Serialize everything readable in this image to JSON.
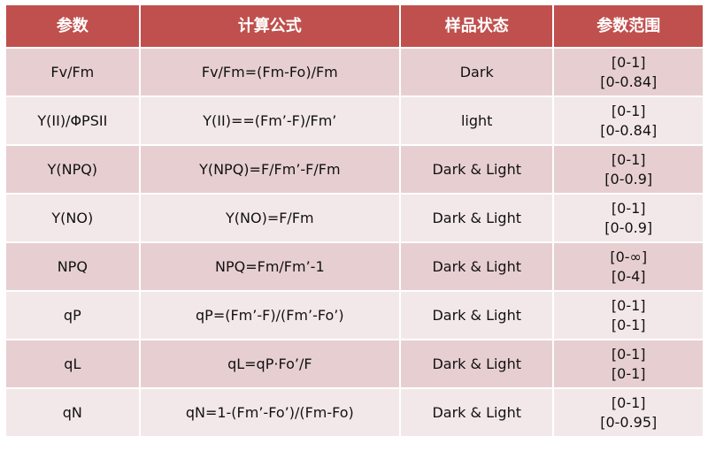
{
  "header": {
    "param": "参数",
    "formula": "计算公式",
    "state": "样品状态",
    "range": "参数范围"
  },
  "header_color": "#c0504d",
  "rows": [
    {
      "param": "Fv/Fm",
      "formula": "Fv/Fm=(Fm-Fo)/Fm",
      "state": "Dark",
      "range1": "[0-1]",
      "range2": "[0-0.84]"
    },
    {
      "param": "Y(II)/ΦPSII",
      "formula": "Y(II)==(Fm’-F)/Fm’",
      "state": "light",
      "range1": "[0-1]",
      "range2": "[0-0.84]"
    },
    {
      "param": "Y(NPQ)",
      "formula": "Y(NPQ)=F/Fm’-F/Fm",
      "state": "Dark & Light",
      "range1": "[0-1]",
      "range2": "[0-0.9]"
    },
    {
      "param": "Y(NO)",
      "formula": "Y(NO)=F/Fm",
      "state": "Dark & Light",
      "range1": "[0-1]",
      "range2": "[0-0.9]"
    },
    {
      "param": "NPQ",
      "formula": "NPQ=Fm/Fm’-1",
      "state": "Dark & Light",
      "range1": "[0-∞]",
      "range2": "[0-4]"
    },
    {
      "param": "qP",
      "formula": "qP=(Fm’-F)/(Fm’-Fo’)",
      "state": "Dark & Light",
      "range1": "[0-1]",
      "range2": "[0-1]"
    },
    {
      "param": "qL",
      "formula": "qL=qP·Fo’/F",
      "state": "Dark & Light",
      "range1": "[0-1]",
      "range2": "[0-1]"
    },
    {
      "param": "qN",
      "formula": "qN=1-(Fm’-Fo’)/(Fm-Fo)",
      "state": "Dark & Light",
      "range1": "[0-1]",
      "range2": "[0-0.95]"
    }
  ]
}
